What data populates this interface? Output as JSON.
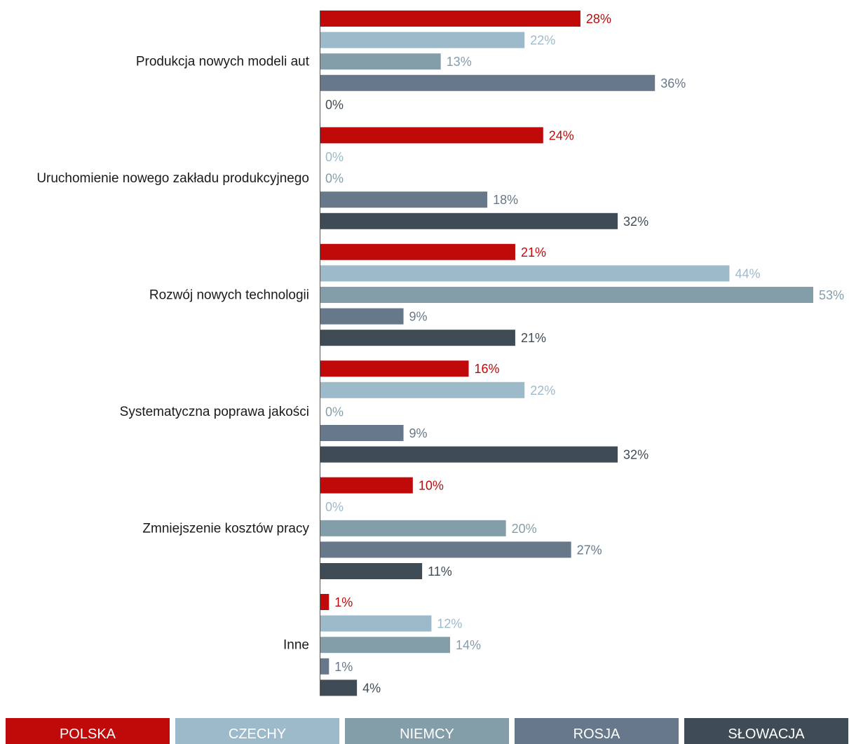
{
  "chart_data": {
    "type": "bar",
    "orientation": "horizontal",
    "categories": [
      "Produkcja nowych modeli aut",
      "Uruchomienie nowego zakładu produkcyjnego",
      "Rozwój nowych technologii",
      "Systematyczna poprawa jakości",
      "Zmniejszenie kosztów pracy",
      "Inne"
    ],
    "series": [
      {
        "name": "POLSKA",
        "color": "#c00a0a",
        "label_color": "#c00a0a",
        "values": [
          28,
          24,
          21,
          16,
          10,
          1
        ]
      },
      {
        "name": "CZECHY",
        "color": "#9dbacb",
        "label_color": "#9dbacb",
        "values": [
          22,
          0,
          44,
          22,
          0,
          12
        ]
      },
      {
        "name": "NIEMCY",
        "color": "#849ea9",
        "label_color": "#849ea9",
        "values": [
          13,
          0,
          53,
          0,
          20,
          14
        ]
      },
      {
        "name": "ROSJA",
        "color": "#67788a",
        "label_color": "#67788a",
        "values": [
          36,
          18,
          9,
          9,
          27,
          1
        ]
      },
      {
        "name": "SŁOWACJA",
        "color": "#3f4c55",
        "label_color": "#3f4c55",
        "values": [
          0,
          32,
          21,
          32,
          11,
          4
        ]
      }
    ],
    "value_suffix": "%",
    "xlim": [
      0,
      53
    ],
    "grid": false,
    "legend_position": "bottom"
  }
}
